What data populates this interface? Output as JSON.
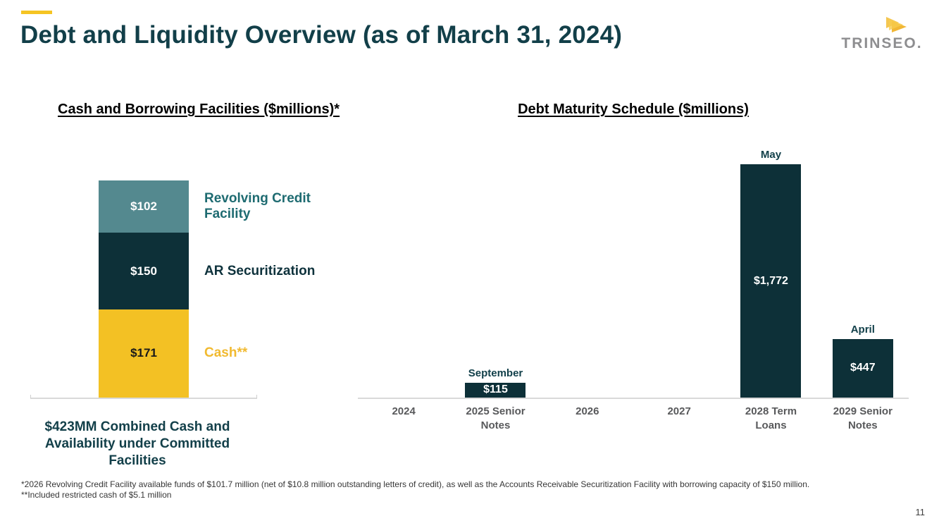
{
  "slide": {
    "title": "Debt and Liquidity Overview (as of March 31, 2024)",
    "logo_text": "TRINSEO.",
    "footnote1": "*2026 Revolving Credit Facility available funds of $101.7 million (net of $10.8 million outstanding letters of credit), as well as the Accounts Receivable Securitization Facility with borrowing capacity of $150 million.",
    "footnote2": "**Included restricted cash of $5.1 million",
    "page_number": "11"
  },
  "colors": {
    "accent_gold": "#F5C423",
    "dark_teal": "#0D3038",
    "medium_teal": "#54898F",
    "gold": "#F3C124",
    "title_teal": "#123F49",
    "legend_teal": "#1E6B71",
    "gold_label": "#F1BA30",
    "category_gray": "#58595B",
    "axis_gray": "#D9D9D9",
    "logo_gray": "#8E8E90"
  },
  "chart_data": [
    {
      "type": "bar",
      "variant": "stacked-single-column",
      "title": "Cash and Borrowing Facilities ($millions)*",
      "caption": "$423MM Combined Cash and Availability under Committed Facilities",
      "total": 423,
      "segments": [
        {
          "label": "Revolving Credit Facility",
          "value": 102,
          "value_label": "$102",
          "color": "#54898F",
          "text_color": "#FFFFFF",
          "legend_color": "#1E6B71"
        },
        {
          "label": "AR Securitization",
          "value": 150,
          "value_label": "$150",
          "color": "#0D3038",
          "text_color": "#FFFFFF",
          "legend_color": "#0E323C"
        },
        {
          "label": "Cash**",
          "value": 171,
          "value_label": "$171",
          "color": "#F3C124",
          "text_color": "#1A1A1A",
          "legend_color": "#F1BA30"
        }
      ]
    },
    {
      "type": "bar",
      "title": "Debt Maturity Schedule ($millions)",
      "categories": [
        "2024",
        "2025 Senior Notes",
        "2026",
        "2027",
        "2028 Term Loans",
        "2029 Senior Notes"
      ],
      "values": [
        0,
        115,
        0,
        0,
        1772,
        447
      ],
      "value_labels": [
        "",
        "$115",
        "",
        "",
        "$1,772",
        "$447"
      ],
      "annotations": [
        "",
        "September",
        "",
        "",
        "May",
        "April"
      ],
      "bar_color": "#0D3038",
      "ylim": [
        0,
        1800
      ],
      "grid": false,
      "legend": "none"
    }
  ]
}
